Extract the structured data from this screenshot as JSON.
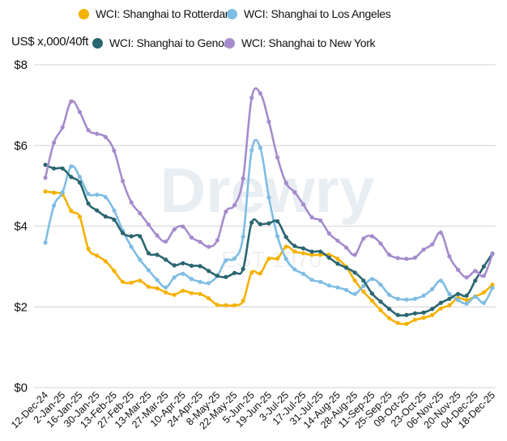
{
  "chart_data": {
    "type": "line",
    "ylabel": "US$ x,000/40ft",
    "ylim": [
      0,
      8
    ],
    "yticks": [
      0,
      2,
      4,
      6,
      8
    ],
    "ytick_labels": [
      "$0",
      "$2",
      "$4",
      "$6",
      "$8"
    ],
    "grid": true,
    "legend_position": "top",
    "watermark": "Drewry EST 1970",
    "x_tick_labels": [
      "12-Dec-24",
      "2-Jan-25",
      "16-Jan-25",
      "30-Jan-25",
      "13-Feb-25",
      "27-Feb-25",
      "13-Mar-25",
      "27-Mar-25",
      "10-Apr-25",
      "24-Apr-25",
      "8-May-25",
      "22-May-25",
      "5-Jun-25",
      "19-Jun-25",
      "3-Jul-25",
      "17-Jul-25",
      "31-Jul-25",
      "14-Aug-25",
      "28-Aug-25",
      "11-Sep-25",
      "25-Sep-25",
      "09-Oct-25",
      "23-Oct-25",
      "06-Nov-25",
      "20-Nov-25",
      "04-Dec-25",
      "18-Dec-25"
    ],
    "x_tick_every": 2,
    "series": [
      {
        "name": "WCI: Shanghai to Rotterdam",
        "color": "#F5B100",
        "values": [
          4.86,
          4.83,
          4.78,
          4.38,
          4.23,
          3.44,
          3.27,
          3.13,
          2.89,
          2.62,
          2.6,
          2.65,
          2.5,
          2.46,
          2.36,
          2.3,
          2.4,
          2.34,
          2.32,
          2.21,
          2.05,
          2.04,
          2.04,
          2.15,
          2.85,
          2.83,
          3.19,
          3.2,
          3.49,
          3.37,
          3.33,
          3.29,
          3.29,
          3.29,
          3.19,
          2.99,
          2.65,
          2.38,
          2.15,
          1.92,
          1.72,
          1.6,
          1.58,
          1.68,
          1.73,
          1.8,
          1.96,
          2.04,
          2.22,
          2.17,
          2.26,
          2.36,
          2.55
        ]
      },
      {
        "name": "WCI: Shanghai to Los Angeles",
        "color": "#7EBDE4",
        "values": [
          3.59,
          4.51,
          4.84,
          5.48,
          5.22,
          4.8,
          4.78,
          4.72,
          4.39,
          3.89,
          3.49,
          3.17,
          2.91,
          2.67,
          2.48,
          2.73,
          2.82,
          2.69,
          2.62,
          2.59,
          2.77,
          3.15,
          3.2,
          3.74,
          5.88,
          5.94,
          4.71,
          3.75,
          3.19,
          2.93,
          2.82,
          2.67,
          2.62,
          2.53,
          2.48,
          2.42,
          2.32,
          2.52,
          2.69,
          2.55,
          2.3,
          2.2,
          2.18,
          2.2,
          2.28,
          2.44,
          2.65,
          2.32,
          2.17,
          2.08,
          2.25,
          2.1,
          2.47
        ]
      },
      {
        "name": "WCI: Shanghai to Genoa",
        "color": "#2A6670",
        "values": [
          5.52,
          5.43,
          5.43,
          5.22,
          5.08,
          4.56,
          4.39,
          4.24,
          4.16,
          3.83,
          3.75,
          3.75,
          3.33,
          3.29,
          3.17,
          3.03,
          3.08,
          3.02,
          3.01,
          2.89,
          2.77,
          2.74,
          2.84,
          2.94,
          4.09,
          4.05,
          4.07,
          4.12,
          3.73,
          3.51,
          3.45,
          3.37,
          3.37,
          3.22,
          3.07,
          2.97,
          2.85,
          2.65,
          2.33,
          2.13,
          1.95,
          1.8,
          1.8,
          1.84,
          1.86,
          1.95,
          2.1,
          2.2,
          2.32,
          2.28,
          2.65,
          3.0,
          3.32
        ]
      },
      {
        "name": "WCI: Shanghai to New York",
        "color": "#A58CCD",
        "values": [
          5.2,
          6.07,
          6.45,
          7.09,
          6.83,
          6.38,
          6.29,
          6.21,
          5.87,
          5.12,
          4.59,
          4.32,
          4.04,
          3.77,
          3.62,
          3.92,
          3.99,
          3.72,
          3.61,
          3.49,
          3.65,
          4.36,
          4.52,
          5.18,
          7.18,
          7.29,
          6.59,
          5.7,
          5.07,
          4.84,
          4.54,
          4.22,
          4.14,
          3.82,
          3.64,
          3.47,
          3.29,
          3.69,
          3.75,
          3.57,
          3.29,
          3.21,
          3.19,
          3.22,
          3.42,
          3.55,
          3.84,
          3.25,
          2.92,
          2.73,
          2.89,
          2.77,
          3.31
        ]
      }
    ]
  }
}
